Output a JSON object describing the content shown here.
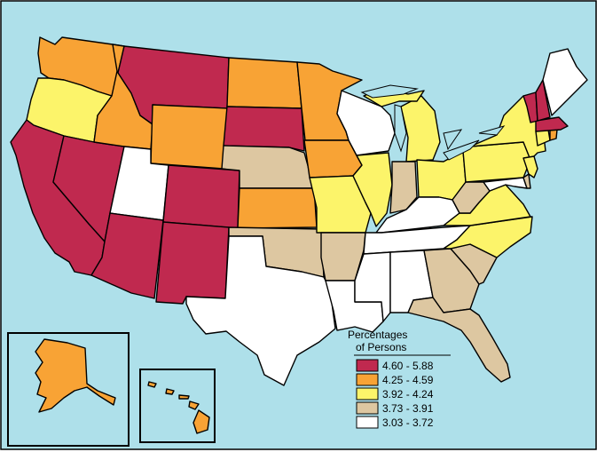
{
  "colors": {
    "water": "#aee0ea",
    "c1": "#c0294f",
    "c2": "#f8a335",
    "c3": "#fcf46a",
    "c4": "#ddc7a1",
    "c5": "#ffffff",
    "outline": "#000000"
  },
  "legend": {
    "title_line1": "Percentages",
    "title_line2": "of Persons",
    "items": [
      {
        "label": "4.60 - 5.88",
        "class": "c1"
      },
      {
        "label": "4.25 - 4.59",
        "class": "c2"
      },
      {
        "label": "3.92 - 4.24",
        "class": "c3"
      },
      {
        "label": "3.73 - 3.91",
        "class": "c4"
      },
      {
        "label": "3.03 - 3.72",
        "class": "c5"
      }
    ]
  },
  "states": {
    "WA": "c2",
    "OR": "c3",
    "CA": "c1",
    "NV": "c1",
    "ID": "c2",
    "MT": "c1",
    "WY": "c2",
    "UT": "c5",
    "AZ": "c1",
    "CO": "c1",
    "NM": "c1",
    "ND": "c2",
    "SD": "c1",
    "NE": "c4",
    "KS": "c2",
    "OK": "c4",
    "TX": "c5",
    "MN": "c2",
    "IA": "c2",
    "MO": "c3",
    "AR": "c4",
    "LA": "c5",
    "WI": "c5",
    "IL": "c3",
    "MI": "c3",
    "IN": "c4",
    "OH": "c3",
    "KY": "c5",
    "TN": "c5",
    "MS": "c5",
    "AL": "c5",
    "GA": "c4",
    "FL": "c4",
    "SC": "c4",
    "NC": "c3",
    "VA": "c3",
    "WV": "c4",
    "PA": "c3",
    "NY": "c3",
    "NJ": "c3",
    "DE": "c4",
    "MD": "c5",
    "CT": "c3",
    "RI": "c2",
    "MA": "c1",
    "VT": "c1",
    "NH": "c1",
    "ME": "c5",
    "AK": "c2",
    "HI": "c2"
  }
}
